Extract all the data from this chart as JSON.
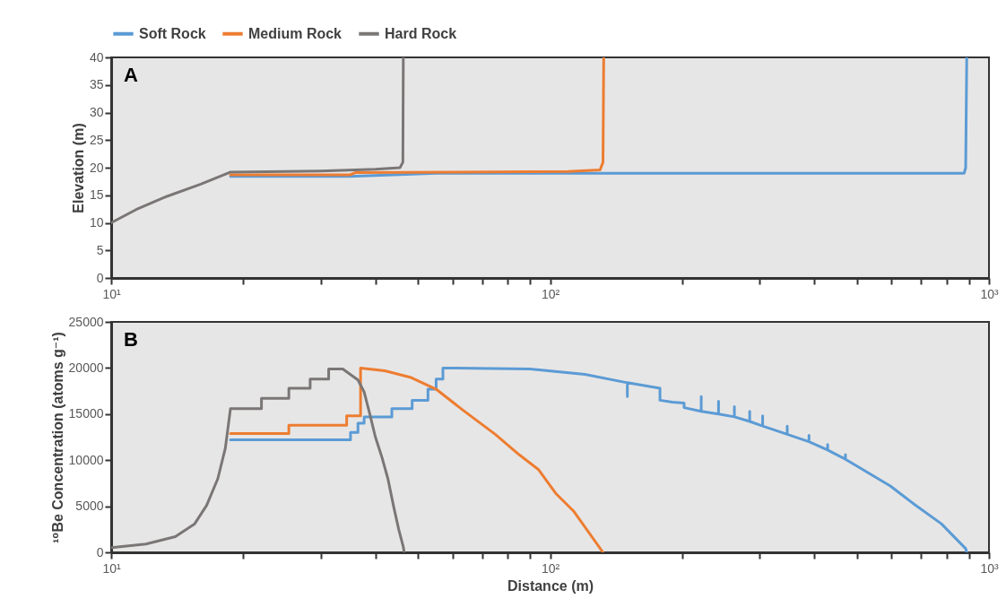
{
  "chart_data": [
    {
      "type": "line",
      "annotations": [
        "A"
      ],
      "ylabel": "Elevation (m)",
      "log": "x",
      "legend": "top",
      "xlim": [
        10,
        1000
      ],
      "ylim": [
        0,
        40
      ],
      "xticks": [
        {
          "value": 10,
          "label": "10¹"
        },
        {
          "value": 20,
          "label": null
        },
        {
          "value": 30,
          "label": null
        },
        {
          "value": 40,
          "label": null
        },
        {
          "value": 50,
          "label": null
        },
        {
          "value": 60,
          "label": null
        },
        {
          "value": 70,
          "label": null
        },
        {
          "value": 80,
          "label": null
        },
        {
          "value": 90,
          "label": null
        },
        {
          "value": 100,
          "label": "10²"
        },
        {
          "value": 200,
          "label": null
        },
        {
          "value": 300,
          "label": null
        },
        {
          "value": 400,
          "label": null
        },
        {
          "value": 500,
          "label": null
        },
        {
          "value": 600,
          "label": null
        },
        {
          "value": 700,
          "label": null
        },
        {
          "value": 800,
          "label": null
        },
        {
          "value": 900,
          "label": null
        },
        {
          "value": 1000,
          "label": "10³"
        }
      ],
      "yticks": [
        0,
        5,
        10,
        15,
        20,
        25,
        30,
        35,
        40
      ],
      "series": [
        {
          "name": "Soft Rock",
          "color": "#5b9bd5",
          "x": [
            18.7,
            35,
            55,
            878,
            885,
            890
          ],
          "values": [
            18.4,
            18.4,
            19,
            19,
            20,
            40
          ]
        },
        {
          "name": "Medium Rock",
          "color": "#ed7d31",
          "x": [
            18.7,
            35,
            36,
            60,
            110,
            130,
            132,
            132.5
          ],
          "values": [
            18.7,
            18.7,
            19.1,
            19.2,
            19.3,
            19.6,
            21,
            40
          ]
        },
        {
          "name": "Hard Rock",
          "color": "#7b7676",
          "x": [
            10,
            11.4,
            13.4,
            16,
            18.7,
            30,
            40,
            45.5,
            46.2,
            46.3
          ],
          "values": [
            10,
            12.4,
            14.8,
            17,
            19.2,
            19.4,
            19.7,
            20,
            21,
            40
          ]
        }
      ]
    },
    {
      "type": "line",
      "annotations": [
        "B"
      ],
      "xlabel": "Distance (m)",
      "ylabel": "¹⁰Be Concentration (atoms g⁻¹)",
      "log": "x",
      "xlim": [
        10,
        1000
      ],
      "ylim": [
        0,
        25000
      ],
      "xticks": [
        {
          "value": 10,
          "label": "10¹"
        },
        {
          "value": 20,
          "label": null
        },
        {
          "value": 30,
          "label": null
        },
        {
          "value": 40,
          "label": null
        },
        {
          "value": 50,
          "label": null
        },
        {
          "value": 60,
          "label": null
        },
        {
          "value": 70,
          "label": null
        },
        {
          "value": 80,
          "label": null
        },
        {
          "value": 90,
          "label": null
        },
        {
          "value": 100,
          "label": "10²"
        },
        {
          "value": 200,
          "label": null
        },
        {
          "value": 300,
          "label": null
        },
        {
          "value": 400,
          "label": null
        },
        {
          "value": 500,
          "label": null
        },
        {
          "value": 600,
          "label": null
        },
        {
          "value": 700,
          "label": null
        },
        {
          "value": 800,
          "label": null
        },
        {
          "value": 900,
          "label": null
        },
        {
          "value": 1000,
          "label": "10³"
        }
      ],
      "yticks": [
        0,
        5000,
        10000,
        15000,
        20000,
        25000
      ],
      "series": [
        {
          "color": "#5b9bd5",
          "x": [
            18.7,
            35.1,
            35.1,
            36.5,
            36.5,
            37.7,
            37.7,
            43.6,
            43.6,
            48.5,
            48.5,
            52.7,
            52.7,
            55,
            55,
            57,
            57,
            90,
            120,
            150,
            150,
            150,
            178,
            178,
            190,
            202,
            202,
            221,
            221,
            221,
            242,
            242,
            242,
            263,
            263,
            263,
            285,
            285,
            285,
            305,
            305,
            305,
            347,
            347,
            347,
            389,
            389,
            389,
            429,
            429,
            429,
            471,
            471,
            471,
            511,
            596,
            676,
            779,
            885,
            890
          ],
          "values": [
            12200,
            12200,
            13000,
            13000,
            14000,
            14000,
            14700,
            14700,
            15600,
            15600,
            16500,
            16500,
            17700,
            17700,
            18800,
            18800,
            20000,
            19900,
            19300,
            18400,
            16900,
            18400,
            17800,
            16500,
            16300,
            16200,
            15700,
            15300,
            16900,
            15300,
            15000,
            16400,
            15000,
            14700,
            15800,
            14700,
            14200,
            15300,
            14200,
            13700,
            14800,
            13700,
            12800,
            13700,
            12800,
            12000,
            12700,
            12000,
            11100,
            11700,
            11100,
            10100,
            10600,
            10100,
            9100,
            7200,
            5200,
            3100,
            400,
            0
          ]
        },
        {
          "color": "#ed7d31",
          "x": [
            18.7,
            25.4,
            25.4,
            34.4,
            34.4,
            37,
            37,
            42,
            48,
            55,
            63,
            75,
            85,
            94,
            103,
            113,
            132
          ],
          "values": [
            12900,
            12900,
            13800,
            13800,
            14800,
            14800,
            20000,
            19700,
            19000,
            17700,
            15500,
            12800,
            10600,
            9000,
            6400,
            4500,
            0
          ]
        },
        {
          "color": "#7b7676",
          "x": [
            10,
            12,
            14,
            15.5,
            16.5,
            17.5,
            18.2,
            18.7,
            22,
            22,
            25.4,
            25.4,
            28.4,
            28.4,
            31.3,
            31.3,
            33.7,
            36.5,
            37.7,
            38.8,
            40,
            41.4,
            42.7,
            44,
            45.2,
            46.3,
            46.5
          ],
          "values": [
            500,
            900,
            1700,
            3100,
            5100,
            8000,
            11300,
            15600,
            15600,
            16700,
            16700,
            17800,
            17800,
            18800,
            18800,
            19900,
            19900,
            18700,
            17400,
            15100,
            12500,
            10300,
            8000,
            5000,
            2500,
            600,
            0
          ]
        }
      ]
    }
  ]
}
